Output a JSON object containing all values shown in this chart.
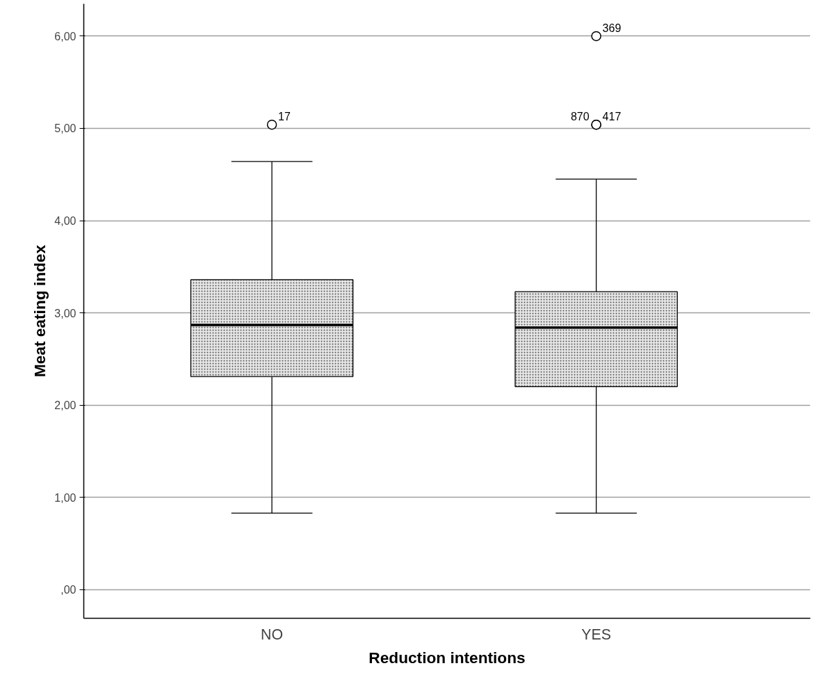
{
  "chart_data": {
    "type": "box",
    "xlabel": "Reduction intentions",
    "ylabel": "Meat eating index",
    "categories": [
      "NO",
      "YES"
    ],
    "boxes": [
      {
        "low": 0.83,
        "q1": 2.31,
        "median": 2.87,
        "q3": 3.36,
        "high": 4.64,
        "outliers": [
          5.04
        ]
      },
      {
        "low": 0.83,
        "q1": 2.2,
        "median": 2.84,
        "q3": 3.23,
        "high": 4.45,
        "outliers": [
          6.0,
          5.04,
          5.04
        ]
      }
    ],
    "color": "#e6e6e6",
    "ylim": [
      -0.31,
      6.35
    ],
    "yticks": [
      {
        "value": 0,
        "label": ",00"
      },
      {
        "value": 1,
        "label": "1,00"
      },
      {
        "value": 2,
        "label": "2,00"
      },
      {
        "value": 3,
        "label": "3,00"
      },
      {
        "value": 4,
        "label": "4,00"
      },
      {
        "value": 5,
        "label": "5,00"
      },
      {
        "value": 6,
        "label": "6,00"
      }
    ],
    "grid": "y",
    "annotations": [
      "17",
      "369",
      "870",
      "417"
    ]
  }
}
